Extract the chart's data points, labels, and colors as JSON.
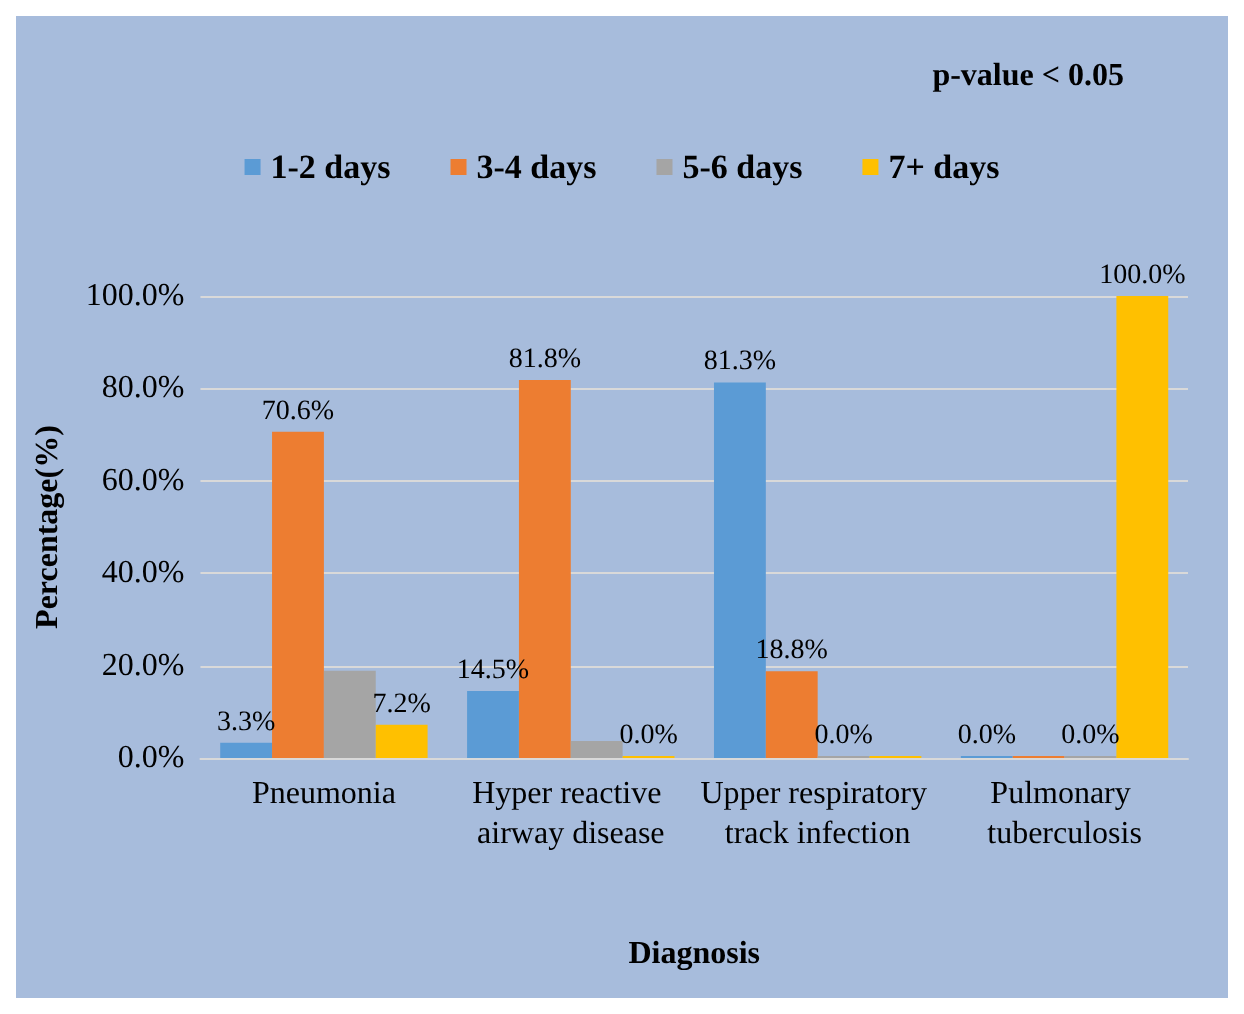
{
  "chart_data": {
    "type": "bar",
    "annotations": [
      "p-value < 0.05"
    ],
    "xlabel": "Diagnosis",
    "ylabel": "Percentage(%)",
    "categories": [
      "Pneumonia",
      "Hyper reactive airway disease",
      "Upper respiratory track infection",
      "Pulmonary tuberculosis"
    ],
    "series": [
      {
        "name": "1-2 days",
        "color": "#5b9bd5",
        "values": [
          3.3,
          14.5,
          81.3,
          0.0
        ],
        "value_labels": [
          "3.3%",
          "14.5%",
          "81.3%",
          "0.0%"
        ]
      },
      {
        "name": "3-4 days",
        "color": "#ed7d31",
        "values": [
          70.6,
          81.8,
          18.8,
          0.0
        ],
        "value_labels": [
          "70.6%",
          "81.8%",
          "18.8%",
          null
        ]
      },
      {
        "name": "5-6 days",
        "color": "#a5a5a5",
        "values": [
          18.9,
          3.7,
          0.0,
          0.0
        ],
        "value_labels": [
          null,
          null,
          "0.0%",
          "0.0%"
        ]
      },
      {
        "name": "7+ days",
        "color": "#ffc000",
        "values": [
          7.2,
          0.0,
          0.0,
          100.0
        ],
        "value_labels": [
          "7.2%",
          "0.0%",
          null,
          "100.0%"
        ]
      }
    ],
    "ylim": [
      0,
      100
    ],
    "yticks": [
      {
        "value": 0,
        "label": "0.0%"
      },
      {
        "value": 20,
        "label": "20.0%"
      },
      {
        "value": 40,
        "label": "40.0%"
      },
      {
        "value": 60,
        "label": "60.0%"
      },
      {
        "value": 80,
        "label": "80.0%"
      },
      {
        "value": 100,
        "label": "100.0%"
      }
    ],
    "grid": true,
    "legend": "top"
  }
}
